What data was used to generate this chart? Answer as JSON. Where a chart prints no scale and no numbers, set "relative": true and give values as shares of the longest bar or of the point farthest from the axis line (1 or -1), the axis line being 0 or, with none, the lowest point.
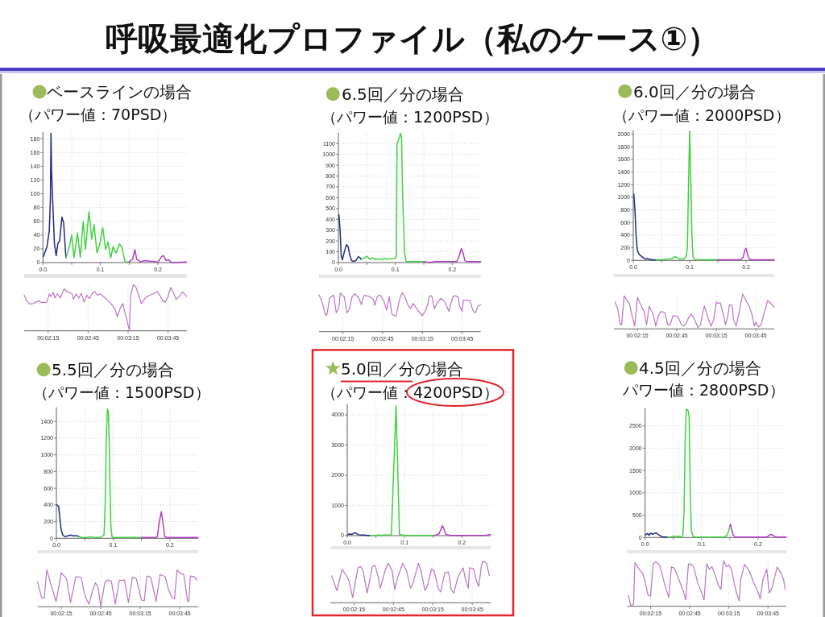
{
  "chart_data": [
    {
      "type": "other",
      "title": "呼吸最適化プロファイル（私のケース①）"
    },
    {
      "type": "line",
      "title": "ベースラインの場合",
      "subtitle": "（パワー値：70PSD）",
      "xlim": [
        0,
        0.25
      ],
      "xticks": [
        {
          "value": 0,
          "label": "0.0"
        },
        {
          "value": 0.05,
          "label": null
        },
        {
          "value": 0.1,
          "label": "0.1"
        },
        {
          "value": 0.15,
          "label": null
        },
        {
          "value": 0.2,
          "label": "0.2"
        }
      ],
      "ylim": [
        0,
        190
      ],
      "yticks": [
        0,
        20,
        40,
        60,
        80,
        100,
        120,
        140,
        160,
        180
      ],
      "grid": true,
      "series": [
        {
          "color": "#1c2a7c",
          "x": [
            0.001,
            0.007,
            0.011,
            0.013,
            0.014,
            0.015,
            0.017,
            0.02,
            0.023,
            0.026,
            0.029,
            0.033,
            0.036,
            0.039,
            0.04
          ],
          "values": [
            9,
            23,
            46,
            93,
            188,
            132,
            89,
            27,
            10,
            28,
            31,
            66,
            58,
            19,
            7
          ]
        },
        {
          "color": "#3fd23f",
          "x": [
            0.04,
            0.046,
            0.05,
            0.054,
            0.06,
            0.065,
            0.07,
            0.074,
            0.08,
            0.085,
            0.089,
            0.094,
            0.099,
            0.104,
            0.109,
            0.113,
            0.118,
            0.122,
            0.127,
            0.133,
            0.137,
            0.143,
            0.15
          ],
          "values": [
            7,
            23,
            40,
            7,
            43,
            8,
            60,
            19,
            74,
            34,
            55,
            14,
            27,
            51,
            19,
            30,
            7,
            23,
            14,
            27,
            23,
            1,
            1
          ]
        },
        {
          "color": "#b23ec4",
          "x": [
            0.15,
            0.156,
            0.16,
            0.163,
            0.17,
            0.177,
            0.186,
            0.2,
            0.207,
            0.21,
            0.214,
            0.219,
            0.223,
            0.25
          ],
          "values": [
            1,
            5,
            19,
            5,
            1,
            3,
            2,
            1,
            9,
            10,
            3,
            4,
            0,
            1
          ]
        }
      ]
    },
    {
      "type": "line",
      "relative": true,
      "xlim": [
        0.0325,
        0.06639
      ],
      "xticks": [
        {
          "value": 0.0375,
          "label": "00:02:15"
        },
        {
          "value": 0.045833,
          "label": "00:02:45"
        },
        {
          "value": 0.054167,
          "label": "00:03:15"
        },
        {
          "value": 0.0625,
          "label": "00:03:45"
        }
      ],
      "grid": "x",
      "series": [
        {
          "color": "#bd72c8",
          "x": [
            0.0325,
            0.03306,
            0.03361,
            0.03444,
            0.03556,
            0.03611,
            0.03722,
            0.03778,
            0.03806,
            0.03861,
            0.03889,
            0.03944,
            0.04,
            0.04083,
            0.04139,
            0.04194,
            0.0425,
            0.04278,
            0.04333,
            0.04389,
            0.04444,
            0.045,
            0.04556,
            0.04611,
            0.04667,
            0.04722,
            0.04778,
            0.04833,
            0.04944,
            0.05056,
            0.05139,
            0.05194,
            0.0525,
            0.05306,
            0.05361,
            0.05444,
            0.05472,
            0.05528,
            0.05583,
            0.05639,
            0.05694,
            0.05778,
            0.05861,
            0.05944,
            0.06028,
            0.06083,
            0.06139,
            0.06194,
            0.0625,
            0.06306,
            0.06361,
            0.06417,
            0.065,
            0.06556,
            0.06639
          ],
          "values": [
            0.77,
            0.65,
            0.58,
            0.59,
            0.65,
            0.61,
            0.62,
            0.8,
            0.74,
            0.83,
            0.71,
            0.8,
            0.71,
            0.91,
            0.85,
            0.83,
            0.8,
            0.68,
            0.8,
            0.71,
            0.81,
            0.62,
            0.77,
            0.7,
            0.8,
            0.85,
            0.77,
            0.8,
            0.71,
            0.59,
            0.48,
            0.3,
            0.48,
            0.59,
            0.36,
            0.01,
            0.77,
            1,
            0.94,
            0.77,
            0.59,
            0.71,
            0.77,
            0.8,
            0.85,
            0.76,
            0.65,
            0.62,
            0.74,
            0.94,
            0.83,
            0.68,
            0.76,
            0.84,
            0.74
          ]
        }
      ]
    },
    {
      "type": "line",
      "title": "6.5回／分の場合",
      "subtitle": "（パワー値：1200PSD）",
      "xlim": [
        0,
        0.25
      ],
      "xticks": [
        {
          "value": 0,
          "label": "0.0"
        },
        {
          "value": 0.05,
          "label": null
        },
        {
          "value": 0.1,
          "label": "0.1"
        },
        {
          "value": 0.15,
          "label": null
        },
        {
          "value": 0.2,
          "label": "0.2"
        }
      ],
      "ylim": [
        0,
        1200
      ],
      "yticks": [
        0,
        100,
        200,
        300,
        400,
        500,
        600,
        700,
        800,
        900,
        1000,
        1100
      ],
      "grid": true,
      "series": [
        {
          "color": "#1c2a7c",
          "x": [
            0.001,
            0.003,
            0.005,
            0.007,
            0.01,
            0.014,
            0.017,
            0.02,
            0.023,
            0.027,
            0.031,
            0.035,
            0.038,
            0.04
          ],
          "values": [
            440,
            300,
            60,
            25,
            90,
            165,
            150,
            70,
            20,
            10,
            20,
            55,
            45,
            30
          ]
        },
        {
          "color": "#3fd23f",
          "x": [
            0.04,
            0.045,
            0.05,
            0.055,
            0.06,
            0.065,
            0.07,
            0.075,
            0.08,
            0.085,
            0.09,
            0.095,
            0.1,
            0.102,
            0.103,
            0.106,
            0.109,
            0.111,
            0.113,
            0.116,
            0.119,
            0.125,
            0.13,
            0.135,
            0.14,
            0.15
          ],
          "values": [
            30,
            40,
            60,
            30,
            45,
            25,
            35,
            25,
            40,
            30,
            35,
            35,
            40,
            60,
            1100,
            1140,
            1195,
            1150,
            600,
            100,
            10,
            10,
            10,
            10,
            10,
            10
          ]
        },
        {
          "color": "#b23ec4",
          "x": [
            0.15,
            0.16,
            0.17,
            0.18,
            0.19,
            0.2,
            0.208,
            0.212,
            0.216,
            0.219,
            0.222,
            0.226,
            0.235,
            0.245,
            0.25
          ],
          "values": [
            10,
            0,
            10,
            10,
            10,
            10,
            10,
            60,
            130,
            90,
            20,
            10,
            10,
            10,
            10
          ]
        }
      ]
    },
    {
      "type": "line",
      "relative": true,
      "xlim": [
        0.0325,
        0.06639
      ],
      "xticks": [
        {
          "value": 0.0375,
          "label": "00:02:15"
        },
        {
          "value": 0.045833,
          "label": "00:02:45"
        },
        {
          "value": 0.054167,
          "label": "00:03:15"
        },
        {
          "value": 0.0625,
          "label": "00:03:45"
        }
      ],
      "grid": "x",
      "series": [
        {
          "color": "#bd72c8",
          "x": [
            0.0325,
            0.03306,
            0.03389,
            0.03417,
            0.03472,
            0.03556,
            0.03611,
            0.03667,
            0.03694,
            0.0375,
            0.03778,
            0.03833,
            0.03889,
            0.03944,
            0.04,
            0.04083,
            0.04139,
            0.04194,
            0.04306,
            0.04389,
            0.04417,
            0.04472,
            0.04528,
            0.04611,
            0.04667,
            0.04722,
            0.04778,
            0.04861,
            0.04944,
            0.05,
            0.05056,
            0.05111,
            0.05167,
            0.05222,
            0.05278,
            0.05361,
            0.05417,
            0.05472,
            0.05528,
            0.05556,
            0.05611,
            0.05667,
            0.05722,
            0.05806,
            0.05889,
            0.05972,
            0.06056,
            0.06111,
            0.06167,
            0.06194,
            0.0625,
            0.06278,
            0.06417,
            0.06472,
            0.06528,
            0.06583,
            0.06639
          ],
          "values": [
            0.94,
            0.79,
            0.41,
            0.45,
            0.86,
            0.94,
            0.48,
            0.62,
            0.99,
            0.92,
            0.9,
            0.48,
            0.59,
            0.9,
            0.97,
            0.86,
            0.69,
            0.93,
            0.9,
            0.83,
            0.67,
            0.9,
            0.94,
            0.78,
            0.55,
            0.9,
            0.45,
            0.39,
            0.86,
            1,
            0.86,
            0.69,
            0.59,
            0.72,
            0.62,
            0.48,
            0.41,
            0.52,
            0.69,
            0.9,
            0.92,
            0.59,
            0.72,
            0.86,
            0.76,
            0.52,
            0.9,
            0.92,
            0.88,
            0.66,
            0.52,
            0.81,
            0.79,
            0.55,
            0.48,
            0.66,
            0.69
          ]
        }
      ]
    },
    {
      "type": "line",
      "title": "6.0回／分の場合",
      "subtitle": "（パワー値：2000PSD）",
      "xlim": [
        0,
        0.25
      ],
      "xticks": [
        {
          "value": 0,
          "label": "0.0"
        },
        {
          "value": 0.05,
          "label": null
        },
        {
          "value": 0.1,
          "label": "0.1"
        },
        {
          "value": 0.15,
          "label": null
        },
        {
          "value": 0.2,
          "label": "0.2"
        }
      ],
      "ylim": [
        0,
        2060
      ],
      "yticks": [
        0,
        200,
        400,
        600,
        800,
        1000,
        1200,
        1400,
        1600,
        1800,
        2000
      ],
      "grid": true,
      "series": [
        {
          "color": "#1c2a7c",
          "x": [
            0.001,
            0.003,
            0.005,
            0.007,
            0.01,
            0.014,
            0.018,
            0.021,
            0.025,
            0.028,
            0.032,
            0.036,
            0.04
          ],
          "values": [
            1050,
            800,
            400,
            170,
            100,
            70,
            40,
            20,
            30,
            20,
            10,
            10,
            10
          ]
        },
        {
          "color": "#3fd23f",
          "x": [
            0.04,
            0.05,
            0.06,
            0.068,
            0.075,
            0.08,
            0.086,
            0.09,
            0.094,
            0.096,
            0.098,
            0.1,
            0.102,
            0.104,
            0.106,
            0.11,
            0.12,
            0.13,
            0.14,
            0.15
          ],
          "values": [
            10,
            10,
            20,
            30,
            60,
            30,
            20,
            30,
            60,
            200,
            1200,
            2050,
            1300,
            400,
            60,
            10,
            10,
            10,
            10,
            10
          ]
        },
        {
          "color": "#b23ec4",
          "x": [
            0.15,
            0.16,
            0.17,
            0.18,
            0.19,
            0.195,
            0.198,
            0.2,
            0.203,
            0.206,
            0.21,
            0.22,
            0.235,
            0.25
          ],
          "values": [
            10,
            10,
            10,
            10,
            10,
            50,
            170,
            190,
            80,
            20,
            10,
            10,
            10,
            10
          ]
        }
      ]
    },
    {
      "type": "line",
      "relative": true,
      "xlim": [
        0.0325,
        0.06639
      ],
      "xticks": [
        {
          "value": 0.0375,
          "label": "00:02:15"
        },
        {
          "value": 0.045833,
          "label": "00:02:45"
        },
        {
          "value": 0.054167,
          "label": "00:03:15"
        },
        {
          "value": 0.0625,
          "label": "00:03:45"
        }
      ],
      "grid": "x",
      "series": [
        {
          "color": "#bd72c8",
          "x": [
            0.03278,
            0.03333,
            0.03389,
            0.03417,
            0.03472,
            0.03528,
            0.03583,
            0.03639,
            0.03694,
            0.0375,
            0.03806,
            0.03889,
            0.03944,
            0.04,
            0.04083,
            0.04139,
            0.04194,
            0.0425,
            0.04333,
            0.04389,
            0.04444,
            0.045,
            0.04611,
            0.04667,
            0.04722,
            0.04778,
            0.04833,
            0.04889,
            0.04944,
            0.05028,
            0.05083,
            0.05139,
            0.05167,
            0.0525,
            0.05306,
            0.05361,
            0.05417,
            0.05444,
            0.055,
            0.05556,
            0.05611,
            0.05667,
            0.05694,
            0.0575,
            0.05778,
            0.05833,
            0.05889,
            0.05972,
            0.06028,
            0.06111,
            0.06167,
            0.06222,
            0.0625,
            0.06306,
            0.06361,
            0.06444,
            0.065,
            0.06556,
            0.06639
          ],
          "values": [
            0.77,
            0.58,
            0.12,
            0.12,
            0.95,
            0.82,
            0.73,
            0.38,
            0.08,
            0.9,
            0.73,
            0.5,
            0.12,
            0.65,
            0.42,
            0.08,
            0.38,
            0.5,
            0.46,
            0.12,
            0.12,
            0.38,
            0.35,
            0.15,
            0.08,
            0.15,
            0.33,
            0.42,
            0.31,
            0.04,
            0.12,
            0.54,
            0.65,
            0.27,
            0.08,
            0.27,
            0.77,
            0.73,
            0.75,
            0.46,
            0.12,
            0.42,
            0.69,
            0.67,
            0.27,
            0.08,
            0.42,
            1,
            0.85,
            0.65,
            0.42,
            0.08,
            0.19,
            0.05,
            0.12,
            0.54,
            0.81,
            0.75,
            0.62
          ]
        }
      ]
    },
    {
      "type": "line",
      "title": "5.5回／分の場合",
      "subtitle": "（パワー値：1500PSD）",
      "xlim": [
        0,
        0.25
      ],
      "xticks": [
        {
          "value": 0,
          "label": "0.0"
        },
        {
          "value": 0.05,
          "label": null
        },
        {
          "value": 0.1,
          "label": "0.1"
        },
        {
          "value": 0.15,
          "label": null
        },
        {
          "value": 0.2,
          "label": "0.2"
        }
      ],
      "ylim": [
        0,
        1570
      ],
      "yticks": [
        0,
        200,
        400,
        600,
        800,
        1000,
        1200,
        1400
      ],
      "grid": true,
      "series": [
        {
          "color": "#1c2a7c",
          "x": [
            0.001,
            0.004,
            0.006,
            0.008,
            0.011,
            0.015,
            0.02,
            0.025,
            0.03,
            0.034,
            0.037,
            0.04
          ],
          "values": [
            400,
            380,
            250,
            120,
            40,
            20,
            30,
            40,
            30,
            30,
            30,
            20
          ]
        },
        {
          "color": "#3fd23f",
          "x": [
            0.04,
            0.045,
            0.05,
            0.055,
            0.06,
            0.065,
            0.07,
            0.078,
            0.084,
            0.086,
            0.088,
            0.09,
            0.092,
            0.094,
            0.096,
            0.098,
            0.1,
            0.11,
            0.12,
            0.13,
            0.14,
            0.15
          ],
          "values": [
            20,
            10,
            10,
            10,
            20,
            10,
            10,
            10,
            40,
            400,
            1200,
            1550,
            1500,
            800,
            150,
            20,
            10,
            10,
            10,
            10,
            10,
            10
          ]
        },
        {
          "color": "#b23ec4",
          "x": [
            0.15,
            0.16,
            0.17,
            0.175,
            0.178,
            0.181,
            0.185,
            0.188,
            0.191,
            0.195,
            0.2,
            0.21,
            0.22,
            0.24,
            0.25
          ],
          "values": [
            10,
            10,
            10,
            10,
            20,
            180,
            320,
            180,
            20,
            10,
            10,
            10,
            10,
            10,
            10
          ]
        }
      ]
    },
    {
      "type": "line",
      "relative": true,
      "xlim": [
        0.0325,
        0.06639
      ],
      "xticks": [
        {
          "value": 0.0375,
          "label": "00:02:15"
        },
        {
          "value": 0.045833,
          "label": "00:02:45"
        },
        {
          "value": 0.054167,
          "label": "00:03:15"
        },
        {
          "value": 0.0625,
          "label": "00:03:45"
        }
      ],
      "grid": "x",
      "series": [
        {
          "color": "#bd72c8",
          "x": [
            0.0325,
            0.03333,
            0.03389,
            0.03444,
            0.03528,
            0.03639,
            0.0375,
            0.03861,
            0.03944,
            0.04056,
            0.04167,
            0.0425,
            0.04333,
            0.04417,
            0.04472,
            0.04528,
            0.04583,
            0.04667,
            0.04722,
            0.04806,
            0.04889,
            0.04972,
            0.05083,
            0.05167,
            0.0525,
            0.05333,
            0.05444,
            0.055,
            0.05556,
            0.05639,
            0.0575,
            0.05833,
            0.05944,
            0.06,
            0.06083,
            0.06139,
            0.06194,
            0.0625,
            0.06333,
            0.06417,
            0.06444,
            0.06472,
            0.06556,
            0.06611
          ],
          "values": [
            0.67,
            0.25,
            0.23,
            1,
            0.62,
            0.14,
            0.91,
            0.76,
            0.11,
            0.81,
            0.8,
            0.29,
            0.07,
            0.47,
            0.65,
            0.51,
            0.01,
            0.65,
            0.72,
            0.69,
            0.07,
            0.71,
            0.72,
            0.11,
            0.8,
            0.76,
            0.18,
            0.16,
            0.83,
            0.8,
            0.14,
            0.87,
            0.81,
            0.51,
            0.25,
            0.22,
            1,
            0.91,
            0.88,
            0.14,
            0.16,
            0.83,
            0.81,
            0.72
          ]
        }
      ]
    },
    {
      "type": "line",
      "title": "5.0回／分の場合",
      "subtitle": "（パワー値：4200PSD）",
      "xlim": [
        0,
        0.25
      ],
      "xticks": [
        {
          "value": 0,
          "label": "0.0"
        },
        {
          "value": 0.05,
          "label": null
        },
        {
          "value": 0.1,
          "label": "0.1"
        },
        {
          "value": 0.15,
          "label": null
        },
        {
          "value": 0.2,
          "label": "0.2"
        }
      ],
      "ylim": [
        0,
        4350
      ],
      "yticks": [
        0,
        1000,
        2000,
        3000,
        4000
      ],
      "grid": true,
      "series": [
        {
          "color": "#1c2a7c",
          "x": [
            0.001,
            0.004,
            0.007,
            0.01,
            0.013,
            0.016,
            0.02,
            0.025,
            0.03,
            0.035,
            0.04
          ],
          "values": [
            30,
            60,
            40,
            60,
            100,
            70,
            30,
            20,
            20,
            10,
            10
          ]
        },
        {
          "color": "#3fd23f",
          "x": [
            0.04,
            0.05,
            0.055,
            0.06,
            0.065,
            0.07,
            0.075,
            0.077,
            0.081,
            0.085,
            0.088,
            0.091,
            0.1,
            0.11,
            0.12,
            0.13,
            0.14,
            0.15
          ],
          "values": [
            10,
            10,
            20,
            10,
            30,
            20,
            30,
            40,
            2200,
            4300,
            2200,
            40,
            10,
            10,
            10,
            10,
            10,
            10
          ]
        },
        {
          "color": "#b23ec4",
          "x": [
            0.15,
            0.155,
            0.16,
            0.163,
            0.166,
            0.169,
            0.172,
            0.18,
            0.2,
            0.22,
            0.24,
            0.25
          ],
          "values": [
            10,
            20,
            60,
            200,
            330,
            200,
            40,
            10,
            10,
            10,
            10,
            40
          ]
        }
      ]
    },
    {
      "type": "line",
      "relative": true,
      "xlim": [
        0.0325,
        0.06639
      ],
      "xticks": [
        {
          "value": 0.0375,
          "label": "00:02:15"
        },
        {
          "value": 0.045833,
          "label": "00:02:45"
        },
        {
          "value": 0.054167,
          "label": "00:03:15"
        },
        {
          "value": 0.0625,
          "label": "00:03:45"
        }
      ],
      "grid": "x",
      "series": [
        {
          "color": "#bd72c8",
          "x": [
            0.03278,
            0.03389,
            0.035,
            0.03639,
            0.03722,
            0.03778,
            0.03833,
            0.03889,
            0.03944,
            0.04028,
            0.04139,
            0.04194,
            0.0425,
            0.04306,
            0.04417,
            0.04472,
            0.04556,
            0.04611,
            0.04667,
            0.04778,
            0.04861,
            0.04944,
            0.05,
            0.05111,
            0.05167,
            0.0525,
            0.05306,
            0.05389,
            0.05444,
            0.05528,
            0.05583,
            0.05667,
            0.0575,
            0.05806,
            0.05861,
            0.05944,
            0.06056,
            0.06111,
            0.06167,
            0.06194,
            0.06278,
            0.06333,
            0.06389,
            0.06444,
            0.06472,
            0.06556,
            0.06611
          ],
          "values": [
            0.65,
            0.29,
            0.81,
            0.55,
            0.13,
            0.48,
            0.84,
            0.87,
            0.77,
            0.23,
            0.87,
            0.9,
            0.68,
            0.35,
            0.81,
            0.95,
            0.77,
            0.32,
            0.58,
            0.95,
            0.77,
            0.35,
            0.48,
            0.95,
            0.77,
            0.29,
            0.42,
            0.81,
            0.77,
            0.35,
            0.26,
            0.71,
            0.74,
            0.32,
            0.23,
            0.61,
            0.84,
            0.55,
            0.35,
            0.84,
            0.82,
            0.55,
            0.39,
            0.9,
            1,
            0.95,
            0.65
          ]
        }
      ]
    },
    {
      "type": "line",
      "title": "4.5回／分の場合",
      "subtitle": "パワー値：2800PSD）",
      "xlim": [
        0,
        0.25
      ],
      "xticks": [
        {
          "value": 0,
          "label": "0.0"
        },
        {
          "value": 0.05,
          "label": null
        },
        {
          "value": 0.1,
          "label": "0.1"
        },
        {
          "value": 0.15,
          "label": null
        },
        {
          "value": 0.2,
          "label": "0.2"
        }
      ],
      "ylim": [
        0,
        2900
      ],
      "yticks": [
        0,
        500,
        1000,
        1500,
        2000,
        2500
      ],
      "grid": true,
      "series": [
        {
          "color": "#1c2a7c",
          "x": [
            0.001,
            0.004,
            0.007,
            0.01,
            0.013,
            0.016,
            0.02,
            0.024,
            0.028,
            0.032,
            0.036,
            0.04
          ],
          "values": [
            60,
            90,
            50,
            100,
            70,
            90,
            100,
            60,
            30,
            10,
            10,
            10
          ]
        },
        {
          "color": "#3fd23f",
          "x": [
            0.04,
            0.045,
            0.05,
            0.055,
            0.06,
            0.065,
            0.067,
            0.069,
            0.071,
            0.073,
            0.076,
            0.078,
            0.08,
            0.082,
            0.085,
            0.09,
            0.1,
            0.11,
            0.12,
            0.13,
            0.14,
            0.145,
            0.148,
            0.15
          ],
          "values": [
            10,
            10,
            30,
            30,
            30,
            10,
            60,
            600,
            2200,
            2870,
            2850,
            2700,
            1000,
            150,
            20,
            10,
            10,
            10,
            10,
            10,
            10,
            50,
            150,
            250
          ]
        },
        {
          "color": "#b23ec4",
          "x": [
            0.15,
            0.151,
            0.153,
            0.156,
            0.16,
            0.17,
            0.18,
            0.2,
            0.215,
            0.22,
            0.223,
            0.226,
            0.23,
            0.235,
            0.25
          ],
          "values": [
            250,
            300,
            200,
            50,
            10,
            10,
            10,
            10,
            10,
            50,
            70,
            50,
            20,
            10,
            10
          ]
        }
      ]
    },
    {
      "type": "line",
      "relative": true,
      "xlim": [
        0.0325,
        0.06639
      ],
      "xticks": [
        {
          "value": 0.0375,
          "label": "00:02:15"
        },
        {
          "value": 0.045833,
          "label": "00:02:45"
        },
        {
          "value": 0.054167,
          "label": "00:03:15"
        },
        {
          "value": 0.0625,
          "label": "00:03:45"
        }
      ],
      "grid": "x",
      "series": [
        {
          "color": "#bd72c8",
          "x": [
            0.03278,
            0.03333,
            0.03389,
            0.03417,
            0.03472,
            0.03528,
            0.03583,
            0.03639,
            0.03694,
            0.0375,
            0.03806,
            0.03861,
            0.03944,
            0.04,
            0.04056,
            0.04111,
            0.04139,
            0.04194,
            0.0425,
            0.04333,
            0.04389,
            0.04444,
            0.045,
            0.04556,
            0.04611,
            0.04667,
            0.04722,
            0.0475,
            0.04833,
            0.04889,
            0.04944,
            0.05,
            0.05056,
            0.05139,
            0.05194,
            0.0525,
            0.05278,
            0.05306,
            0.05361,
            0.05417,
            0.05472,
            0.05528,
            0.05583,
            0.05639,
            0.05667,
            0.0575,
            0.05806,
            0.05861,
            0.05944,
            0.06028,
            0.06083,
            0.06139,
            0.06222,
            0.06278,
            0.06333,
            0.06444,
            0.06528,
            0.06583,
            0.06611
          ],
          "values": [
            0.24,
            0,
            0.05,
            0.96,
            0.87,
            0.78,
            0.72,
            0.52,
            0.25,
            0.22,
            0.93,
            0.98,
            0.9,
            0.69,
            0.46,
            0.28,
            0.19,
            0.86,
            0.84,
            0.64,
            0.49,
            0.34,
            0.14,
            0.93,
            0.92,
            0.87,
            0.64,
            0.52,
            0.31,
            0.14,
            0.93,
            0.81,
            0.87,
            0.64,
            0.46,
            0.37,
            0.78,
            1,
            0.87,
            0.9,
            0.81,
            0.52,
            0.28,
            0.12,
            0.58,
            0.92,
            0.84,
            0.75,
            0.52,
            0.34,
            0.16,
            0.58,
            0.81,
            0.29,
            0.4,
            0.86,
            0.72,
            0.58,
            0.37
          ]
        }
      ]
    }
  ]
}
